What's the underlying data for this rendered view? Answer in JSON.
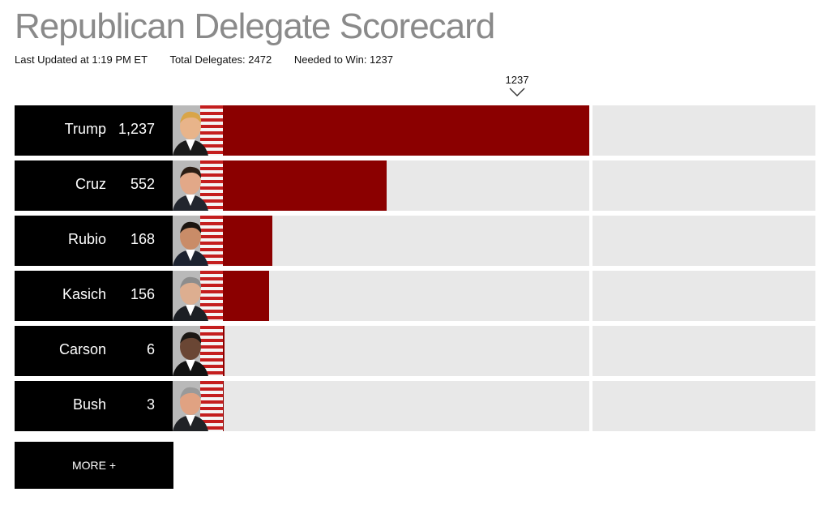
{
  "header": {
    "title": "Republican Delegate Scorecard",
    "last_updated": "Last Updated at 1:19 PM ET",
    "total_delegates": "Total Delegates: 2472",
    "needed_to_win": "Needed to Win: 1237"
  },
  "chart_data": {
    "type": "bar",
    "orientation": "horizontal",
    "categories": [
      "Trump",
      "Cruz",
      "Rubio",
      "Kasich",
      "Carson",
      "Bush"
    ],
    "value_labels": [
      "1,237",
      "552",
      "168",
      "156",
      "6",
      "3"
    ],
    "values": [
      1237,
      552,
      168,
      156,
      6,
      3
    ],
    "threshold": 1237,
    "threshold_label": "1237",
    "xlim": [
      0,
      2000
    ],
    "bar_color": "#8b0000",
    "track_color": "#e8e8e8"
  },
  "more_button": {
    "label": "MORE +"
  }
}
